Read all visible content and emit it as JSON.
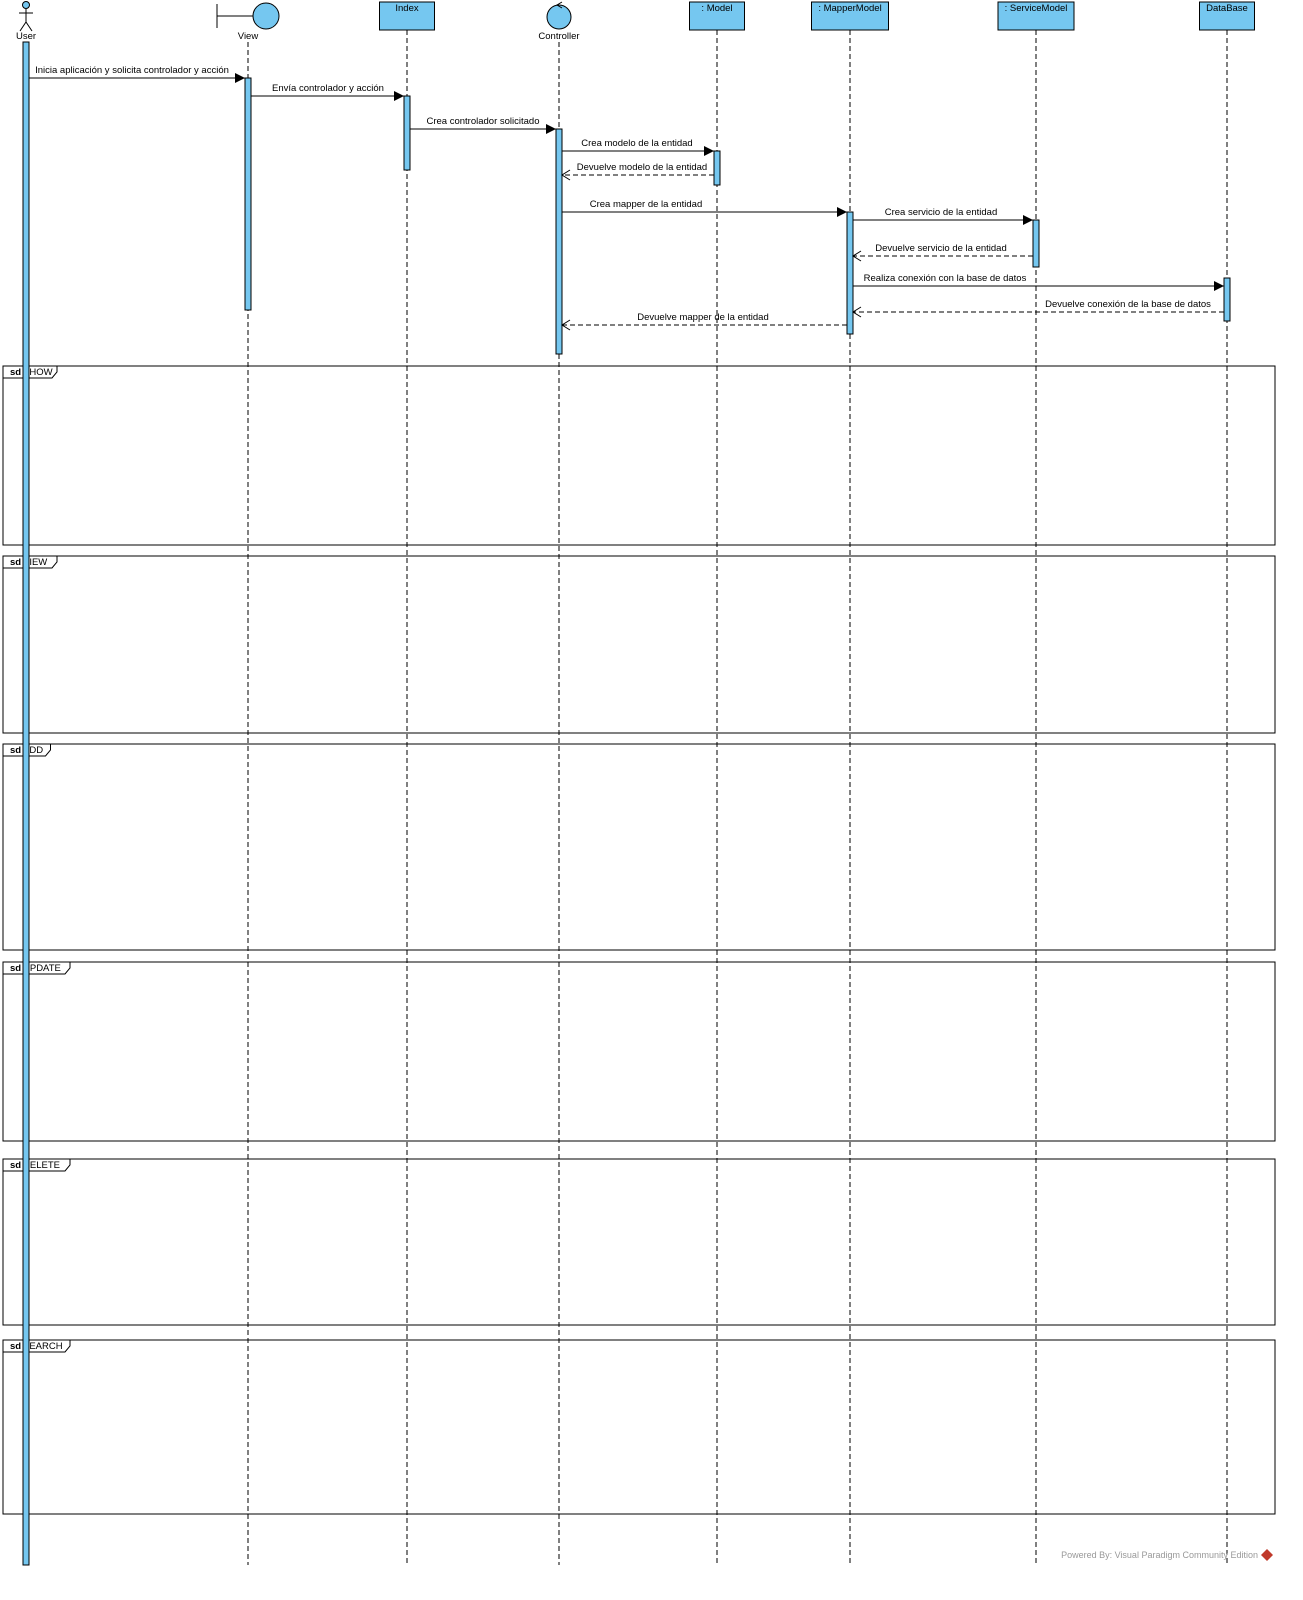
{
  "colors": {
    "fill": "#75C7F0",
    "stroke": "#000000",
    "watermark": "#999999"
  },
  "lifelines": [
    {
      "id": "user",
      "name": "User",
      "kind": "actor"
    },
    {
      "id": "view",
      "name": "View",
      "kind": "boundary"
    },
    {
      "id": "index",
      "name": "Index",
      "kind": "object"
    },
    {
      "id": "controller",
      "name": "Controller",
      "kind": "control"
    },
    {
      "id": "model",
      "name": ": Model",
      "kind": "object"
    },
    {
      "id": "mapper",
      "name": ": MapperModel",
      "kind": "object"
    },
    {
      "id": "service",
      "name": ": ServiceModel",
      "kind": "object"
    },
    {
      "id": "database",
      "name": "DataBase",
      "kind": "object"
    }
  ],
  "messages": [
    {
      "from": "user",
      "to": "view",
      "label": "Inicia aplicación y solicita controlador y acción",
      "type": "sync"
    },
    {
      "from": "view",
      "to": "index",
      "label": "Envía controlador y acción",
      "type": "sync"
    },
    {
      "from": "index",
      "to": "controller",
      "label": "Crea controlador solicitado",
      "type": "sync"
    },
    {
      "from": "controller",
      "to": "model",
      "label": "Crea modelo de la entidad",
      "type": "sync"
    },
    {
      "from": "model",
      "to": "controller",
      "label": "Devuelve modelo de la entidad",
      "type": "return"
    },
    {
      "from": "controller",
      "to": "mapper",
      "label": "Crea mapper de la entidad",
      "type": "sync"
    },
    {
      "from": "mapper",
      "to": "service",
      "label": "Crea servicio de la entidad",
      "type": "sync"
    },
    {
      "from": "service",
      "to": "mapper",
      "label": "Devuelve servicio de la entidad",
      "type": "return"
    },
    {
      "from": "mapper",
      "to": "database",
      "label": "Realiza conexión con la base de datos",
      "type": "sync"
    },
    {
      "from": "database",
      "to": "mapper",
      "label": "Devuelve conexión de la base de datos",
      "type": "return"
    },
    {
      "from": "mapper",
      "to": "controller",
      "label": "Devuelve mapper de la entidad",
      "type": "return"
    }
  ],
  "frames": [
    {
      "keyword": "sd",
      "name": "SHOW"
    },
    {
      "keyword": "sd",
      "name": "VIEW"
    },
    {
      "keyword": "sd",
      "name": "ADD"
    },
    {
      "keyword": "sd",
      "name": "UPDATE"
    },
    {
      "keyword": "sd",
      "name": "DELETE"
    },
    {
      "keyword": "sd",
      "name": "SEARCH"
    }
  ],
  "watermark": "Powered By: Visual Paradigm Community Edition"
}
